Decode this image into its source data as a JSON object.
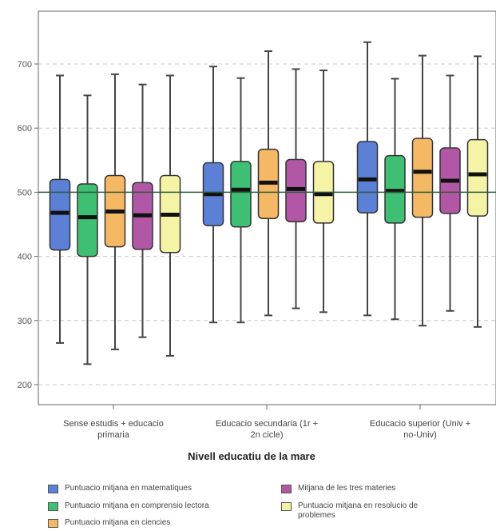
{
  "chart_data": {
    "type": "boxplot",
    "xlabel": "Nivell educatiu de la mare",
    "ylabel": "",
    "ylim": [
      180,
      750
    ],
    "yticks": [
      200,
      300,
      400,
      500,
      600,
      700
    ],
    "reference_line": 500,
    "grid": "dashed horizontal",
    "legend_position": "bottom",
    "categories": [
      "Sense estudis + educacio primaria",
      "Educacio secundaria (1r + 2n cicle)",
      "Educacio superior (Univ + no-Univ)"
    ],
    "series": [
      {
        "name": "Puntuacio mitjana en matematiques",
        "color": "#5b80d6",
        "boxes": [
          {
            "min": 265,
            "q1": 410,
            "median": 468,
            "q3": 520,
            "max": 682
          },
          {
            "min": 297,
            "q1": 448,
            "median": 497,
            "q3": 546,
            "max": 696
          },
          {
            "min": 308,
            "q1": 468,
            "median": 520,
            "q3": 579,
            "max": 734
          }
        ]
      },
      {
        "name": "Puntuacio mitjana en comprensio lectora",
        "color": "#3fbf74",
        "boxes": [
          {
            "min": 232,
            "q1": 400,
            "median": 461,
            "q3": 513,
            "max": 651
          },
          {
            "min": 297,
            "q1": 446,
            "median": 504,
            "q3": 548,
            "max": 678
          },
          {
            "min": 302,
            "q1": 452,
            "median": 502,
            "q3": 557,
            "max": 677
          }
        ]
      },
      {
        "name": "Puntuacio mitjana en ciencies",
        "color": "#f5b865",
        "boxes": [
          {
            "min": 255,
            "q1": 415,
            "median": 470,
            "q3": 526,
            "max": 684
          },
          {
            "min": 308,
            "q1": 459,
            "median": 515,
            "q3": 567,
            "max": 720
          },
          {
            "min": 292,
            "q1": 461,
            "median": 532,
            "q3": 584,
            "max": 713
          }
        ]
      },
      {
        "name": "Mitjana de les tres materies",
        "color": "#b257a6",
        "boxes": [
          {
            "min": 274,
            "q1": 411,
            "median": 464,
            "q3": 515,
            "max": 668
          },
          {
            "min": 319,
            "q1": 454,
            "median": 505,
            "q3": 551,
            "max": 692
          },
          {
            "min": 315,
            "q1": 467,
            "median": 518,
            "q3": 569,
            "max": 682
          }
        ]
      },
      {
        "name": "Puntuacio mitjana en resolucio de problemes",
        "color": "#f5f3a6",
        "boxes": [
          {
            "min": 245,
            "q1": 406,
            "median": 465,
            "q3": 526,
            "max": 682
          },
          {
            "min": 313,
            "q1": 452,
            "median": 497,
            "q3": 548,
            "max": 690
          },
          {
            "min": 290,
            "q1": 463,
            "median": 528,
            "q3": 582,
            "max": 712
          }
        ]
      }
    ]
  },
  "labels": {
    "cat0_line1": "Sense estudis + educacio",
    "cat0_line2": "primaria",
    "cat1_line1": "Educacio secundaria (1r +",
    "cat1_line2": "2n cicle)",
    "cat2_line1": "Educacio superior (Univ +",
    "cat2_line2": "no-Univ)",
    "legend_0": "Puntuacio mitjana en matematiques",
    "legend_1": "Puntuacio mitjana en comprensio lectora",
    "legend_2": "Puntuacio mitjana en ciencies",
    "legend_3": "Mitjana de les tres materies",
    "legend_4_line1": "Puntuacio mitjana en resolucio de",
    "legend_4_line2": "problemes"
  }
}
